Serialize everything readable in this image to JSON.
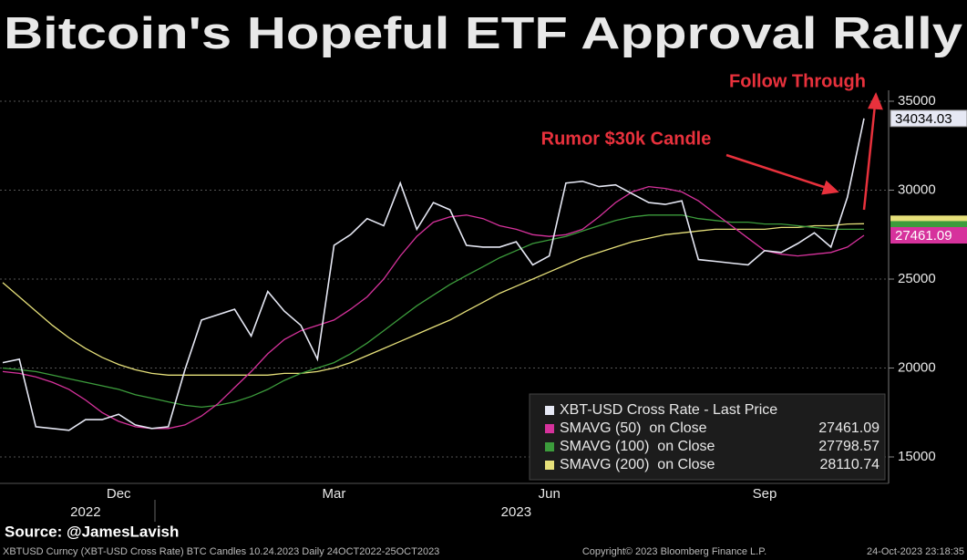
{
  "chart_data": {
    "type": "line",
    "title": "Bitcoin's Hopeful ETF Approval Rally",
    "categories": [
      null,
      null,
      null,
      null,
      null,
      null,
      null,
      "Dec",
      null,
      null,
      null,
      null,
      null,
      null,
      null,
      null,
      null,
      null,
      null,
      null,
      "Mar",
      null,
      null,
      null,
      null,
      null,
      null,
      null,
      null,
      null,
      null,
      null,
      null,
      "Jun",
      null,
      null,
      null,
      null,
      null,
      null,
      null,
      null,
      null,
      null,
      null,
      null,
      "Sep",
      null,
      null,
      null,
      null,
      null,
      null
    ],
    "year_labels": [
      null,
      null,
      null,
      null,
      null,
      "2022",
      null,
      null,
      null,
      null,
      null,
      null,
      null,
      null,
      null,
      null,
      null,
      null,
      null,
      null,
      null,
      null,
      null,
      null,
      null,
      null,
      null,
      null,
      null,
      null,
      null,
      "2023",
      null,
      null,
      null,
      null,
      null,
      null,
      null,
      null,
      null,
      null,
      null,
      null,
      null,
      null,
      null,
      null,
      null,
      null,
      null,
      null,
      null
    ],
    "series": [
      {
        "name": "XBT-USD Cross Rate - Last Price",
        "color": "#e6e8f4",
        "values": [
          20300,
          20500,
          16700,
          16600,
          16500,
          17100,
          17100,
          17400,
          16800,
          16600,
          16700,
          19900,
          22700,
          23000,
          23300,
          21800,
          24300,
          23200,
          22400,
          20500,
          26900,
          27500,
          28400,
          28000,
          30400,
          27800,
          29300,
          28900,
          26900,
          26800,
          26800,
          27100,
          25800,
          26300,
          30400,
          30500,
          30200,
          30300,
          29800,
          29300,
          29200,
          29400,
          26100,
          26000,
          25900,
          25800,
          26600,
          26500,
          27000,
          27600,
          26800,
          29600,
          34034.03
        ]
      },
      {
        "name": "SMAVG (50)  on Close",
        "color": "#d6329c",
        "values": [
          19800,
          19700,
          19500,
          19200,
          18800,
          18200,
          17500,
          17000,
          16700,
          16600,
          16600,
          16800,
          17300,
          18000,
          18900,
          19800,
          20800,
          21600,
          22100,
          22400,
          22700,
          23300,
          24000,
          25000,
          26300,
          27400,
          28200,
          28500,
          28600,
          28400,
          28000,
          27800,
          27500,
          27400,
          27500,
          27800,
          28500,
          29300,
          29900,
          30200,
          30100,
          29900,
          29400,
          28700,
          28000,
          27300,
          26600,
          26400,
          26300,
          26400,
          26500,
          26800,
          27461.09
        ]
      },
      {
        "name": "SMAVG (100)  on Close",
        "color": "#3c9c3c",
        "values": [
          20000,
          19900,
          19800,
          19600,
          19400,
          19200,
          19000,
          18800,
          18500,
          18300,
          18100,
          17900,
          17800,
          17900,
          18100,
          18400,
          18800,
          19300,
          19700,
          20000,
          20300,
          20800,
          21400,
          22100,
          22800,
          23500,
          24100,
          24700,
          25200,
          25700,
          26200,
          26600,
          27000,
          27200,
          27400,
          27700,
          28000,
          28300,
          28500,
          28600,
          28600,
          28600,
          28400,
          28300,
          28200,
          28200,
          28100,
          28100,
          28000,
          27900,
          27800,
          27800,
          27798.57
        ]
      },
      {
        "name": "SMAVG (200)  on Close",
        "color": "#e6e07a",
        "values": [
          24800,
          24000,
          23200,
          22400,
          21700,
          21100,
          20600,
          20200,
          19900,
          19700,
          19600,
          19600,
          19600,
          19600,
          19600,
          19600,
          19600,
          19700,
          19700,
          19800,
          20000,
          20300,
          20700,
          21100,
          21500,
          21900,
          22300,
          22700,
          23200,
          23700,
          24200,
          24600,
          25000,
          25400,
          25800,
          26200,
          26500,
          26800,
          27100,
          27300,
          27500,
          27600,
          27700,
          27800,
          27800,
          27800,
          27800,
          27900,
          27900,
          28000,
          28000,
          28100,
          28110.74
        ]
      }
    ],
    "ylim": [
      13500,
      35600
    ],
    "yticks": [
      15000,
      20000,
      25000,
      30000,
      35000
    ],
    "grid": true,
    "legend": "bottom-right",
    "annotations": [
      "Follow Through",
      "Rumor $30k Candle"
    ],
    "source": "Source: @JamesLavish",
    "footer": {
      "left": "XBTUSD Curncy (XBT-USD Cross Rate) BTC Candles 10.24.2023  Daily 24OCT2022-25OCT2023",
      "center": "Copyright© 2023 Bloomberg Finance L.P.",
      "right": "24-Oct-2023 23:18:35"
    }
  }
}
